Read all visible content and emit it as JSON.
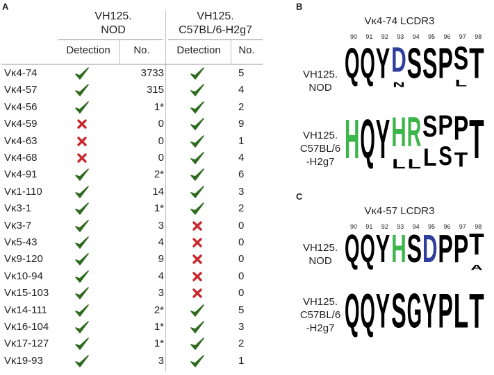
{
  "panels": {
    "a": "A",
    "b": "B",
    "c": "C"
  },
  "table": {
    "group1_title": [
      "VH125.",
      "NOD"
    ],
    "group2_title": [
      "VH125.",
      "C57BL/6-H2g7"
    ],
    "col_detection": "Detection",
    "col_no": "No.",
    "rows": [
      {
        "gene": "Vκ4-74",
        "nod_detect": "yes",
        "nod_no": "3733",
        "c57_detect": "yes",
        "c57_no": "5"
      },
      {
        "gene": "Vκ4-57",
        "nod_detect": "yes",
        "nod_no": "315",
        "c57_detect": "yes",
        "c57_no": "4"
      },
      {
        "gene": "Vκ4-56",
        "nod_detect": "yes",
        "nod_no": "1*",
        "c57_detect": "yes",
        "c57_no": "2"
      },
      {
        "gene": "Vκ4-59",
        "nod_detect": "no",
        "nod_no": "0",
        "c57_detect": "yes",
        "c57_no": "9"
      },
      {
        "gene": "Vκ4-63",
        "nod_detect": "no",
        "nod_no": "0",
        "c57_detect": "yes",
        "c57_no": "1"
      },
      {
        "gene": "Vκ4-68",
        "nod_detect": "no",
        "nod_no": "0",
        "c57_detect": "yes",
        "c57_no": "4"
      },
      {
        "gene": "Vκ4-91",
        "nod_detect": "yes",
        "nod_no": "2*",
        "c57_detect": "yes",
        "c57_no": "6"
      },
      {
        "gene": "Vκ1-110",
        "nod_detect": "yes",
        "nod_no": "14",
        "c57_detect": "yes",
        "c57_no": "3"
      },
      {
        "gene": "Vκ3-1",
        "nod_detect": "yes",
        "nod_no": "1*",
        "c57_detect": "yes",
        "c57_no": "2"
      },
      {
        "gene": "Vκ3-7",
        "nod_detect": "yes",
        "nod_no": "3",
        "c57_detect": "no",
        "c57_no": "0"
      },
      {
        "gene": "Vκ5-43",
        "nod_detect": "yes",
        "nod_no": "4",
        "c57_detect": "no",
        "c57_no": "0"
      },
      {
        "gene": "Vκ9-120",
        "nod_detect": "yes",
        "nod_no": "9",
        "c57_detect": "no",
        "c57_no": "0"
      },
      {
        "gene": "Vκ10-94",
        "nod_detect": "yes",
        "nod_no": "4",
        "c57_detect": "no",
        "c57_no": "0"
      },
      {
        "gene": "Vκ15-103",
        "nod_detect": "yes",
        "nod_no": "3",
        "c57_detect": "no",
        "c57_no": "0"
      },
      {
        "gene": "Vκ14-111",
        "nod_detect": "yes",
        "nod_no": "2*",
        "c57_detect": "yes",
        "c57_no": "5"
      },
      {
        "gene": "Vκ16-104",
        "nod_detect": "yes",
        "nod_no": "1*",
        "c57_detect": "yes",
        "c57_no": "3"
      },
      {
        "gene": "Vκ17-127",
        "nod_detect": "yes",
        "nod_no": "1*",
        "c57_detect": "yes",
        "c57_no": "2"
      },
      {
        "gene": "Vκ19-93",
        "nod_detect": "yes",
        "nod_no": "3",
        "c57_detect": "yes",
        "c57_no": "1"
      }
    ]
  },
  "logo_b": {
    "title": "Vκ4-74 LCDR3",
    "positions": [
      "90",
      "91",
      "92",
      "93",
      "94",
      "95",
      "96",
      "97",
      "98"
    ],
    "strain1": [
      "VH125.",
      "NOD"
    ],
    "strain2": [
      "VH125.",
      "C57BL/6",
      "-H2g7"
    ],
    "strain1_main": [
      "Q",
      "Q",
      "Y",
      "D",
      "S",
      "S",
      "P",
      "S",
      "T"
    ],
    "strain1_minor": [
      "",
      "",
      "",
      "N",
      "",
      "",
      "",
      "L",
      ""
    ],
    "strain2_main": [
      "H",
      "Q",
      "Y",
      "H",
      "R",
      "S",
      "P",
      "P",
      "T"
    ],
    "strain2_minor": [
      "",
      "",
      "",
      "L",
      "L",
      "L",
      "S",
      "T",
      ""
    ]
  },
  "logo_c": {
    "title": "Vκ4-57 LCDR3",
    "positions": [
      "90",
      "91",
      "92",
      "93",
      "94",
      "95",
      "96",
      "97",
      "98"
    ],
    "strain1": [
      "VH125.",
      "NOD"
    ],
    "strain2": [
      "VH125.",
      "C57BL/6",
      "-H2g7"
    ],
    "strain1_main": [
      "Q",
      "Q",
      "Y",
      "H",
      "S",
      "D",
      "P",
      "P",
      "T"
    ],
    "strain1_minor": [
      "",
      "",
      "",
      "",
      "",
      "",
      "",
      "",
      "A"
    ],
    "strain2_main": [
      "Q",
      "Q",
      "Y",
      "S",
      "G",
      "Y",
      "P",
      "L",
      "T"
    ]
  },
  "colors": {
    "check": "#2e6b1f",
    "cross": "#c8282d",
    "logo_black": "#000000",
    "logo_blue": "#2f3d9c",
    "logo_green": "#3cb54a"
  }
}
